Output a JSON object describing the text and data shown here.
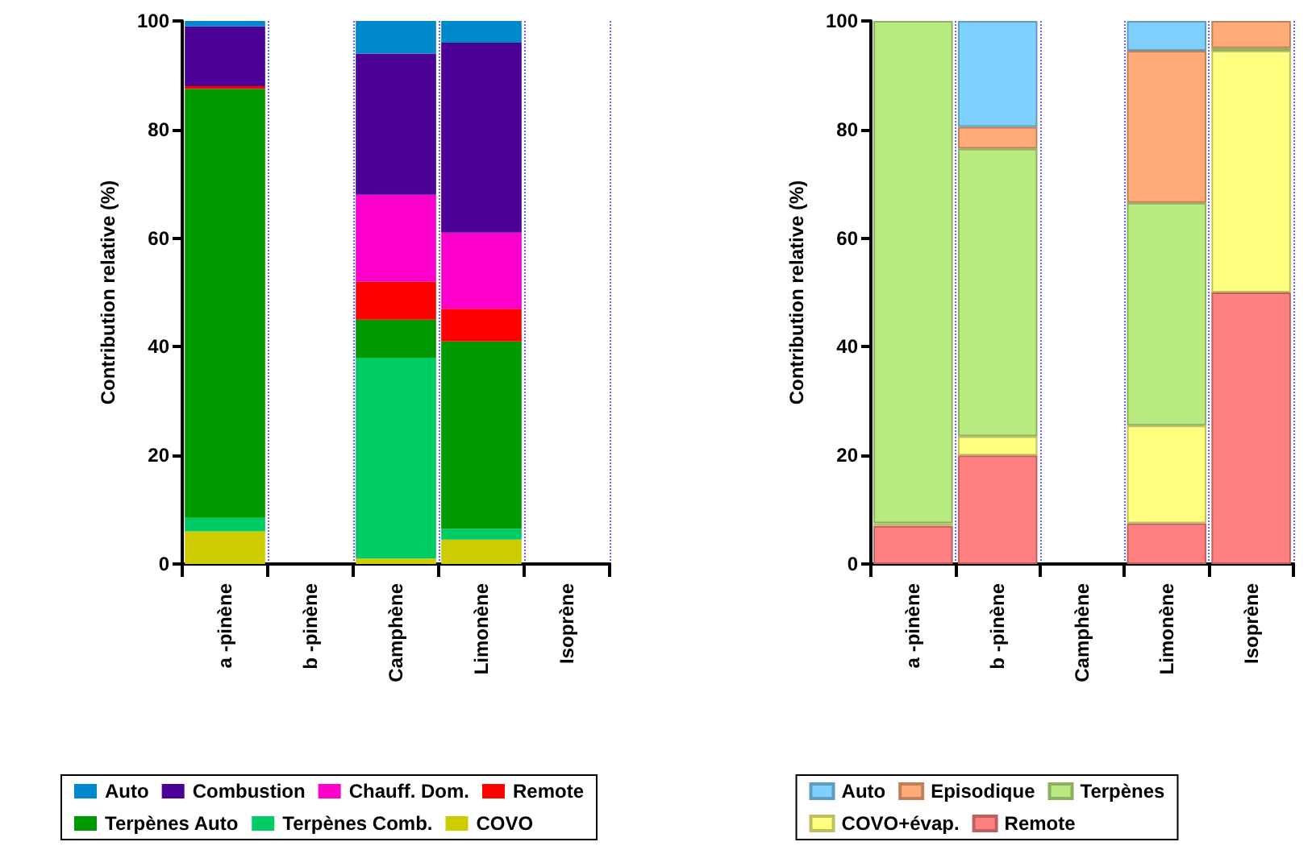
{
  "chart_data": [
    {
      "type": "bar",
      "stacked": true,
      "ylabel": "Contribution relative (%)",
      "categories": [
        "a -pinène",
        "b -pinène",
        "Camphène",
        "Limonène",
        "Isoprène"
      ],
      "ylim": [
        0,
        100
      ],
      "yticks": [
        0,
        20,
        40,
        60,
        80,
        100
      ],
      "grid": "x",
      "legend": "bottom",
      "series": [
        {
          "name": "COVO",
          "color": "#cccc00",
          "values": [
            6,
            null,
            1,
            4.5,
            null
          ]
        },
        {
          "name": "Terpènes Comb.",
          "color": "#00cc66",
          "values": [
            2.5,
            null,
            37,
            2,
            null
          ]
        },
        {
          "name": "Terpènes Auto",
          "color": "#009900",
          "values": [
            79,
            null,
            7,
            34.5,
            null
          ]
        },
        {
          "name": "Remote",
          "color": "#ff0000",
          "values": [
            0.5,
            null,
            7,
            6,
            null
          ]
        },
        {
          "name": "Chauff. Dom.",
          "color": "#ff00cc",
          "values": [
            0,
            null,
            16,
            14,
            null
          ]
        },
        {
          "name": "Combustion",
          "color": "#4b0096",
          "values": [
            11,
            null,
            26,
            35,
            null
          ]
        },
        {
          "name": "Auto",
          "color": "#0088cc",
          "values": [
            1,
            null,
            6,
            4,
            null
          ]
        }
      ]
    },
    {
      "type": "bar",
      "stacked": true,
      "ylabel": "Contribution relative (%)",
      "categories": [
        "a -pinène",
        "b -pinène",
        "Camphène",
        "Limonène",
        "Isoprène"
      ],
      "ylim": [
        0,
        100
      ],
      "yticks": [
        0,
        20,
        40,
        60,
        80,
        100
      ],
      "grid": "x",
      "legend": "bottom",
      "series": [
        {
          "name": "Remote",
          "color": "#ff8080",
          "values": [
            7,
            20,
            null,
            7.5,
            50
          ]
        },
        {
          "name": "COVO+évap.",
          "color": "#ffff80",
          "values": [
            0.5,
            3.5,
            null,
            18,
            44.5
          ]
        },
        {
          "name": "Terpènes",
          "color": "#b8ea80",
          "values": [
            92.5,
            53,
            null,
            41,
            0.5
          ]
        },
        {
          "name": "Episodique",
          "color": "#ffaa77",
          "values": [
            0,
            4,
            null,
            28,
            5
          ]
        },
        {
          "name": "Auto",
          "color": "#80d0ff",
          "values": [
            0,
            19.5,
            null,
            5.5,
            0
          ]
        }
      ]
    }
  ]
}
